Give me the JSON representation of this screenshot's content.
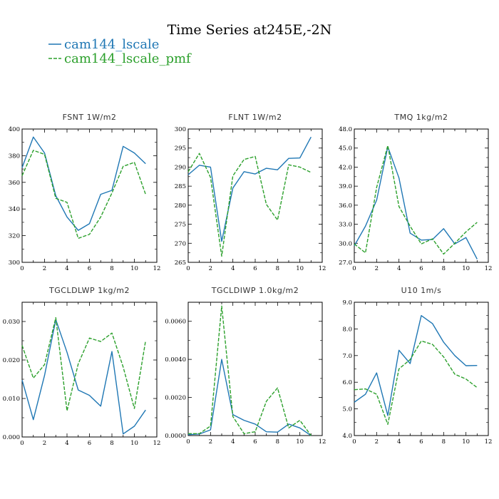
{
  "title": "Time Series at245E,-2N",
  "colors": {
    "cam144_lscale": "#1f77b4",
    "cam144_lscale_pmf": "#2ca02c"
  },
  "legend": [
    {
      "label": "cam144_lscale",
      "color": "#1f77b4",
      "dash": false
    },
    {
      "label": "cam144_lscale_pmf",
      "color": "#2ca02c",
      "dash": true
    }
  ],
  "chart_data": [
    {
      "type": "line",
      "title": "FSNT   1W/m2",
      "x": [
        0,
        1,
        2,
        3,
        4,
        5,
        6,
        7,
        8,
        9,
        10,
        11
      ],
      "xlim": [
        0,
        12
      ],
      "xticks": [
        0,
        2,
        4,
        6,
        8,
        10,
        12
      ],
      "ylim": [
        300,
        400
      ],
      "yticks": [
        "300",
        "320",
        "340",
        "360",
        "380",
        "400"
      ],
      "series": [
        {
          "name": "cam144_lscale",
          "values": [
            371,
            394,
            382,
            350,
            334,
            324,
            329,
            351,
            354,
            387,
            382,
            374
          ]
        },
        {
          "name": "cam144_lscale_pmf",
          "values": [
            365,
            384,
            381,
            348,
            345,
            318,
            321,
            334,
            352,
            372,
            375,
            351
          ]
        }
      ]
    },
    {
      "type": "line",
      "title": "FLNT   1W/m2",
      "x": [
        0,
        1,
        2,
        3,
        4,
        5,
        6,
        7,
        8,
        9,
        10,
        11
      ],
      "xlim": [
        0,
        12
      ],
      "xticks": [
        0,
        2,
        4,
        6,
        8,
        10,
        12
      ],
      "ylim": [
        265,
        300
      ],
      "yticks": [
        "265",
        "270",
        "275",
        "280",
        "285",
        "290",
        "295",
        "300"
      ],
      "series": [
        {
          "name": "cam144_lscale",
          "values": [
            288.0,
            290.5,
            290.0,
            270.5,
            284.5,
            288.8,
            288.2,
            289.7,
            289.3,
            292.3,
            292.4,
            297.9
          ]
        },
        {
          "name": "cam144_lscale_pmf",
          "values": [
            288.8,
            293.6,
            287.3,
            266.6,
            287.7,
            292.0,
            292.8,
            280.2,
            276.1,
            290.6,
            290.0,
            288.6
          ]
        }
      ]
    },
    {
      "type": "line",
      "title": "TMQ   1kg/m2",
      "x": [
        0,
        1,
        2,
        3,
        4,
        5,
        6,
        7,
        8,
        9,
        10,
        11
      ],
      "xlim": [
        0,
        12
      ],
      "xticks": [
        0,
        2,
        4,
        6,
        8,
        10,
        12
      ],
      "ylim": [
        27,
        48
      ],
      "yticks": [
        "27.0",
        "30.0",
        "33.0",
        "36.0",
        "39.0",
        "42.0",
        "45.0",
        "48.0"
      ],
      "series": [
        {
          "name": "cam144_lscale",
          "values": [
            29.6,
            32.7,
            36.8,
            45.2,
            40.3,
            31.6,
            30.5,
            30.6,
            32.3,
            29.9,
            30.9,
            27.5
          ]
        },
        {
          "name": "cam144_lscale_pmf",
          "values": [
            29.9,
            28.5,
            38.8,
            45.4,
            35.8,
            32.7,
            29.9,
            30.7,
            28.3,
            30.0,
            31.8,
            33.3
          ]
        }
      ]
    },
    {
      "type": "line",
      "title": "TGCLDLWP   1kg/m2",
      "x": [
        0,
        1,
        2,
        3,
        4,
        5,
        6,
        7,
        8,
        9,
        10,
        11
      ],
      "xlim": [
        0,
        12
      ],
      "xticks": [
        0,
        2,
        4,
        6,
        8,
        10,
        12
      ],
      "ylim": [
        0,
        0.035
      ],
      "yticks": [
        "0.000",
        "0.010",
        "0.020",
        "0.030"
      ],
      "ytick_values": [
        0,
        0.01,
        0.02,
        0.03
      ],
      "series": [
        {
          "name": "cam144_lscale",
          "values": [
            0.0148,
            0.0045,
            0.016,
            0.0305,
            0.022,
            0.0122,
            0.0108,
            0.008,
            0.0222,
            0.0008,
            0.0028,
            0.007
          ]
        },
        {
          "name": "cam144_lscale_pmf",
          "values": [
            0.0238,
            0.0153,
            0.0188,
            0.031,
            0.0068,
            0.019,
            0.0257,
            0.0248,
            0.027,
            0.0182,
            0.0074,
            0.025
          ]
        }
      ]
    },
    {
      "type": "line",
      "title": "TGCLDIWP   1.0kg/m2",
      "x": [
        0,
        1,
        2,
        3,
        4,
        5,
        6,
        7,
        8,
        9,
        10,
        11
      ],
      "xlim": [
        0,
        12
      ],
      "xticks": [
        0,
        2,
        4,
        6,
        8,
        10,
        12
      ],
      "ylim": [
        0,
        0.007
      ],
      "yticks": [
        "0.0000",
        "0.0020",
        "0.0040",
        "0.0060"
      ],
      "ytick_values": [
        0,
        0.002,
        0.004,
        0.006
      ],
      "series": [
        {
          "name": "cam144_lscale",
          "values": [
            5e-05,
            8e-05,
            0.0003,
            0.004,
            0.0011,
            0.0008,
            0.0006,
            0.0002,
            0.00018,
            0.0006,
            0.0004,
            0.0
          ]
        },
        {
          "name": "cam144_lscale_pmf",
          "values": [
            0.0001,
            0.0001,
            0.0005,
            0.0068,
            0.001,
            0.0001,
            0.0002,
            0.0018,
            0.0025,
            0.0004,
            0.0008,
            0.0
          ]
        }
      ]
    },
    {
      "type": "line",
      "title": "U10   1m/s",
      "x": [
        0,
        1,
        2,
        3,
        4,
        5,
        6,
        7,
        8,
        9,
        10,
        11
      ],
      "xlim": [
        0,
        12
      ],
      "xticks": [
        0,
        2,
        4,
        6,
        8,
        10,
        12
      ],
      "ylim": [
        4,
        9
      ],
      "yticks": [
        "4.0",
        "5.0",
        "6.0",
        "7.0",
        "8.0",
        "9.0"
      ],
      "ytick_values": [
        4,
        5,
        6,
        7,
        8,
        9
      ],
      "series": [
        {
          "name": "cam144_lscale",
          "values": [
            5.25,
            5.55,
            6.35,
            4.75,
            7.2,
            6.7,
            8.5,
            8.2,
            7.5,
            7.0,
            6.62,
            6.63
          ]
        },
        {
          "name": "cam144_lscale_pmf",
          "values": [
            5.72,
            5.75,
            5.55,
            4.42,
            6.5,
            6.85,
            7.55,
            7.42,
            6.95,
            6.3,
            6.12,
            5.8
          ]
        }
      ]
    }
  ]
}
